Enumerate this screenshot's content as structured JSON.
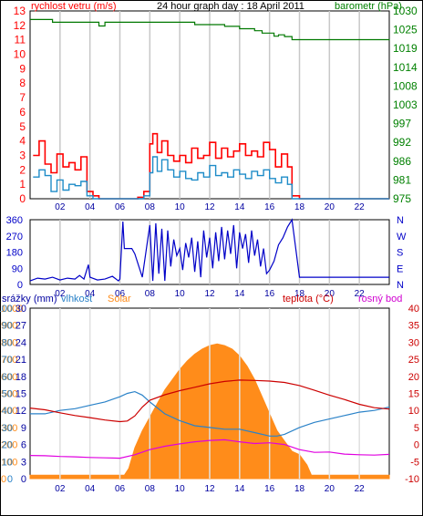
{
  "chart_data": [
    {
      "type": "line",
      "title": "24 hour graph day : 18 April 2011",
      "left_axis_label": "rychlost vetru (m/s)",
      "right_axis_label": "barometr (hPa)",
      "x_tick_labels": [
        "02",
        "04",
        "06",
        "08",
        "10",
        "12",
        "14",
        "16",
        "18",
        "20",
        "22"
      ],
      "xlim": [
        0,
        24
      ],
      "left_ylim": [
        0,
        13
      ],
      "left_yticks": [
        0,
        1,
        2,
        3,
        4,
        5,
        6,
        7,
        8,
        9,
        10,
        11,
        12,
        13
      ],
      "right_yticks": [
        "975",
        "981",
        "986",
        "992",
        "997",
        "1003",
        "1008",
        "1014",
        "1019",
        "1025",
        "1030"
      ],
      "right_ylim": [
        975,
        1030
      ],
      "grid": true,
      "colors": {
        "wind_gust": "#ff0000",
        "wind_avg": "#1e8cc8",
        "barometer": "#007800",
        "left_axis": "#ff0000",
        "right_axis": "#008000"
      },
      "series": [
        {
          "name": "wind_gust",
          "x": [
            0.2,
            0.6,
            1.0,
            1.4,
            1.8,
            2.2,
            2.6,
            3.0,
            3.4,
            3.8,
            4.2,
            4.6,
            5.0,
            5.6,
            6.4,
            7.2,
            7.6,
            8.0,
            8.2,
            8.5,
            8.8,
            9.2,
            9.6,
            10.0,
            10.4,
            10.8,
            11.2,
            11.6,
            12.0,
            12.4,
            12.8,
            13.2,
            13.6,
            14.0,
            14.4,
            14.8,
            15.2,
            15.6,
            16.0,
            16.4,
            16.8,
            17.2,
            17.5,
            18.0,
            19,
            20,
            21,
            22,
            23,
            24
          ],
          "values": [
            3.0,
            4.0,
            2.4,
            1.8,
            3.1,
            2.2,
            2.5,
            2.0,
            2.9,
            0.5,
            0.2,
            0.0,
            0.0,
            0.0,
            0.0,
            0.1,
            0.5,
            3.8,
            4.5,
            3.2,
            4.0,
            3.0,
            2.6,
            3.0,
            2.5,
            3.5,
            2.8,
            3.0,
            3.9,
            2.8,
            3.5,
            2.9,
            3.3,
            3.8,
            3.0,
            3.3,
            2.9,
            3.9,
            3.4,
            2.2,
            3.1,
            2.2,
            0.2,
            0.0,
            0.0,
            0.0,
            0.0,
            0.0,
            0.0,
            0.0
          ]
        },
        {
          "name": "wind_avg",
          "x": [
            0.2,
            0.6,
            1.0,
            1.4,
            1.8,
            2.2,
            2.6,
            3.0,
            3.4,
            3.8,
            4.2,
            4.6,
            5.0,
            5.6,
            6.4,
            7.2,
            7.6,
            8.0,
            8.2,
            8.5,
            8.8,
            9.2,
            9.6,
            10.0,
            10.4,
            10.8,
            11.2,
            11.6,
            12.0,
            12.4,
            12.8,
            13.2,
            13.6,
            14.0,
            14.4,
            14.8,
            15.2,
            15.6,
            16.0,
            16.4,
            16.8,
            17.2,
            17.5,
            18.0,
            19,
            20,
            21,
            22,
            23,
            24
          ],
          "values": [
            1.5,
            2.0,
            1.6,
            0.5,
            1.3,
            0.6,
            1.0,
            0.9,
            1.2,
            0.2,
            0.0,
            0.0,
            0.0,
            0.0,
            0.0,
            0.0,
            0.2,
            1.8,
            2.9,
            1.9,
            2.7,
            2.0,
            1.5,
            1.9,
            1.4,
            1.3,
            1.8,
            1.5,
            2.3,
            1.6,
            1.8,
            1.5,
            2.0,
            1.7,
            1.4,
            1.9,
            1.6,
            2.0,
            1.4,
            1.1,
            1.5,
            1.0,
            0.0,
            0.0,
            0.0,
            0.0,
            0.0,
            0.0,
            0.0,
            0.0
          ]
        },
        {
          "name": "barometer",
          "x": [
            0,
            1.5,
            4.5,
            4.6,
            4.9,
            5.0,
            9.0,
            11.0,
            13.0,
            14.0,
            15.0,
            15.5,
            16.0,
            16.3,
            16.6,
            17.0,
            17.5,
            24
          ],
          "values": [
            1027.5,
            1026.7,
            1026.7,
            1025.6,
            1025.6,
            1026.7,
            1026.7,
            1026.0,
            1025.5,
            1024.8,
            1024.2,
            1023.5,
            1023.5,
            1022.6,
            1023.0,
            1022.5,
            1021.6,
            1021.4
          ]
        }
      ]
    },
    {
      "type": "line",
      "series_name": "wind_direction",
      "left_yticks": [
        "0",
        "90",
        "180",
        "270",
        "360"
      ],
      "right_labels": [
        "N",
        "W",
        "S",
        "E",
        "N"
      ],
      "ylim": [
        0,
        360
      ],
      "xlim": [
        0,
        24
      ],
      "x_tick_labels": [
        "02",
        "04",
        "06",
        "08",
        "10",
        "12",
        "14",
        "16",
        "18",
        "20",
        "22"
      ],
      "colors": {
        "line": "#0000c8",
        "axis": "#0000c8"
      },
      "series": [
        {
          "name": "wind_direction",
          "x": [
            0,
            0.5,
            1.0,
            1.5,
            2.0,
            2.5,
            3.0,
            3.3,
            3.6,
            3.9,
            4.0,
            4.5,
            5.0,
            5.5,
            5.9,
            6.0,
            6.2,
            6.3,
            6.8,
            7.0,
            7.5,
            8.0,
            8.2,
            8.4,
            8.6,
            8.8,
            9.0,
            9.2,
            9.4,
            9.6,
            9.8,
            10.0,
            10.2,
            10.4,
            10.6,
            10.8,
            11.0,
            11.2,
            11.4,
            11.6,
            11.8,
            12.0,
            12.2,
            12.4,
            12.6,
            12.8,
            13.0,
            13.2,
            13.4,
            13.6,
            13.8,
            14.0,
            14.2,
            14.4,
            14.6,
            14.8,
            15.0,
            15.2,
            15.4,
            15.6,
            15.8,
            16.0,
            16.3,
            16.6,
            16.9,
            17.2,
            17.5,
            18.0,
            24
          ],
          "values": [
            20,
            35,
            30,
            40,
            25,
            35,
            30,
            50,
            30,
            110,
            40,
            25,
            30,
            45,
            20,
            30,
            350,
            200,
            200,
            170,
            40,
            330,
            20,
            340,
            60,
            310,
            20,
            300,
            100,
            250,
            160,
            200,
            80,
            230,
            150,
            260,
            70,
            240,
            40,
            300,
            150,
            260,
            90,
            290,
            130,
            320,
            140,
            300,
            170,
            330,
            90,
            290,
            200,
            280,
            120,
            300,
            160,
            250,
            100,
            200,
            60,
            80,
            130,
            220,
            260,
            320,
            360,
            40,
            40
          ]
        }
      ]
    },
    {
      "type": "area",
      "left_axis_labels": [
        "srážky (mm)",
        "vlhkost",
        "Solar"
      ],
      "right_axis_labels": [
        "teplota (°C)",
        "rosný bod"
      ],
      "solar_yticks": [
        "0",
        "100",
        "200",
        "300",
        "400",
        "500",
        "600",
        "700",
        "800",
        "900",
        "1000"
      ],
      "humidity_yticks": [
        "0",
        "10",
        "20",
        "30",
        "40",
        "50",
        "60",
        "70",
        "80",
        "90",
        "100"
      ],
      "rain_yticks": [
        "0",
        "3",
        "6",
        "9",
        "12",
        "15",
        "18",
        "21",
        "24",
        "27",
        "30"
      ],
      "temperature_yticks": [
        "-10",
        "-5",
        "0",
        "5",
        "10",
        "15",
        "20",
        "25",
        "30",
        "35",
        "40"
      ],
      "xlim": [
        0,
        24
      ],
      "x_tick_labels": [
        "02",
        "04",
        "06",
        "08",
        "10",
        "12",
        "14",
        "16",
        "18",
        "20",
        "22"
      ],
      "colors": {
        "solar": "#ff8c1a",
        "humidity": "#2a82c8",
        "temperature": "#cc0000",
        "dewpoint": "#e000e0",
        "rain_axis": "#0000a0",
        "humidity_axis": "#2a82c8",
        "solar_axis": "#ff8c1a",
        "temperature_axis": "#cc0000",
        "dewpoint_axis": "#d000d0"
      },
      "series": [
        {
          "name": "solar",
          "x": [
            0,
            6.3,
            6.6,
            7.0,
            7.5,
            8.0,
            8.5,
            9.0,
            9.5,
            10.0,
            10.5,
            11.0,
            11.5,
            12.0,
            12.5,
            13.0,
            13.5,
            14.0,
            14.5,
            15.0,
            15.5,
            16.0,
            16.5,
            17.0,
            17.5,
            18.0,
            18.5,
            18.8,
            19,
            24
          ],
          "values": [
            20,
            20,
            60,
            180,
            280,
            360,
            440,
            520,
            580,
            640,
            690,
            730,
            760,
            780,
            790,
            780,
            760,
            720,
            660,
            580,
            480,
            380,
            280,
            220,
            160,
            140,
            80,
            20,
            20,
            20
          ]
        },
        {
          "name": "humidity",
          "x": [
            0,
            1,
            2,
            3,
            4,
            5,
            6,
            6.5,
            7,
            7.5,
            8,
            9,
            10,
            11,
            12,
            13,
            14,
            15,
            16,
            16.5,
            17,
            18,
            19,
            20,
            21,
            22,
            23,
            24
          ],
          "values": [
            38,
            38,
            40,
            41,
            43,
            45,
            48,
            50,
            51,
            49,
            45,
            38,
            34,
            31,
            30,
            29,
            29,
            27,
            25,
            25,
            26,
            30,
            33,
            35,
            37,
            39,
            40,
            42
          ]
        },
        {
          "name": "temperature",
          "x": [
            0,
            1,
            2,
            3,
            4,
            5,
            6,
            6.5,
            7,
            7.5,
            8,
            9,
            10,
            11,
            12,
            13,
            14,
            15,
            16,
            17,
            18,
            19,
            20,
            21,
            22,
            23,
            24
          ],
          "values": [
            10.7,
            10.2,
            9.3,
            8.5,
            7.9,
            7.2,
            6.7,
            6.9,
            8.4,
            11.0,
            13.0,
            14.6,
            15.8,
            16.8,
            17.8,
            18.5,
            18.9,
            18.8,
            18.6,
            18.2,
            17.3,
            15.9,
            14.5,
            13.2,
            11.8,
            10.8,
            10.4
          ]
        },
        {
          "name": "dewpoint",
          "x": [
            0,
            1,
            2,
            3,
            4,
            5,
            6,
            7,
            8,
            9,
            10,
            11,
            12,
            13,
            14,
            15,
            16,
            17,
            18,
            19,
            20,
            21,
            22,
            23,
            24
          ],
          "values": [
            -3.2,
            -3.3,
            -3.5,
            -3.6,
            -3.8,
            -3.9,
            -4.0,
            -3.0,
            -1.5,
            -0.5,
            0.2,
            0.8,
            1.2,
            1.4,
            0.8,
            0.3,
            0.5,
            0.0,
            -1.5,
            -2.3,
            -2.2,
            -2.8,
            -3.0,
            -3.1,
            -2.9
          ]
        }
      ]
    }
  ]
}
